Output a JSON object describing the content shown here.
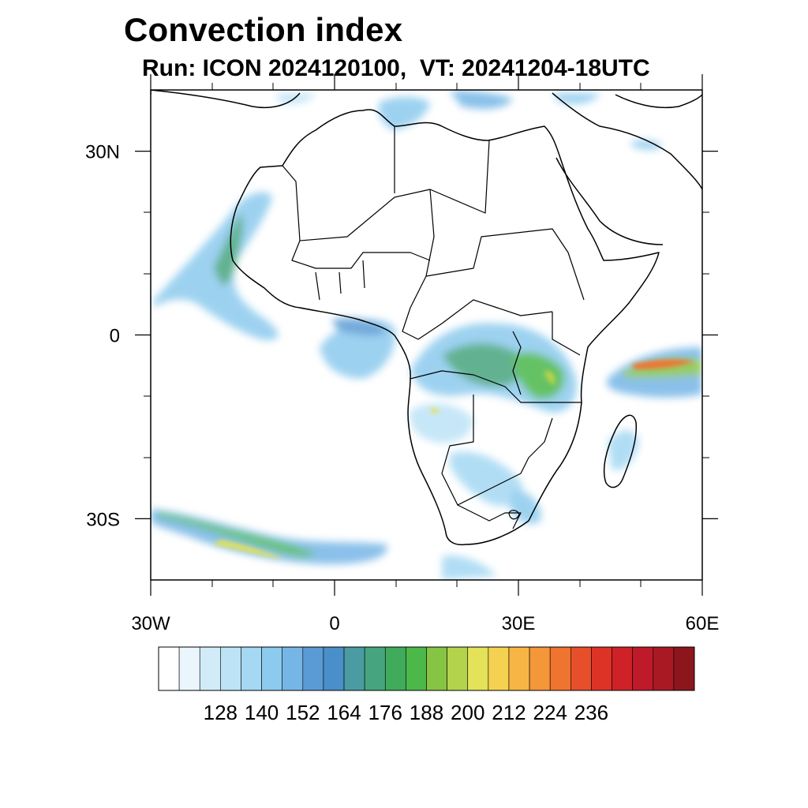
{
  "title": "Convection index",
  "subtitle": "Run: ICON 2024120100,  VT: 20241204-18UTC",
  "map": {
    "region": "Africa",
    "lon_range": [
      -30,
      60
    ],
    "lat_range": [
      -40,
      40
    ],
    "x_ticks": [
      {
        "lon": -30,
        "label": "30W"
      },
      {
        "lon": 0,
        "label": "0"
      },
      {
        "lon": 30,
        "label": "30E"
      },
      {
        "lon": 60,
        "label": "60E"
      }
    ],
    "y_ticks": [
      {
        "lat": 30,
        "label": "30N"
      },
      {
        "lat": 0,
        "label": "0"
      },
      {
        "lat": -30,
        "label": "30S"
      }
    ]
  },
  "colorbar": {
    "colors": [
      "#ffffff",
      "#eaf5fc",
      "#d2ebf8",
      "#bde3f6",
      "#a4d8f3",
      "#8ccaee",
      "#76b6e6",
      "#5b9bd5",
      "#4a8fc9",
      "#4a9ca2",
      "#46a57e",
      "#40ab5a",
      "#4cb849",
      "#86c443",
      "#b3d34c",
      "#e3e258",
      "#f4d151",
      "#f6b544",
      "#f4963a",
      "#ef7430",
      "#e64f2a",
      "#dd3327",
      "#cf2228",
      "#bf1a2a",
      "#a81924",
      "#8c161c"
    ],
    "labels": [
      "128",
      "140",
      "152",
      "164",
      "176",
      "188",
      "200",
      "212",
      "224",
      "236"
    ]
  }
}
